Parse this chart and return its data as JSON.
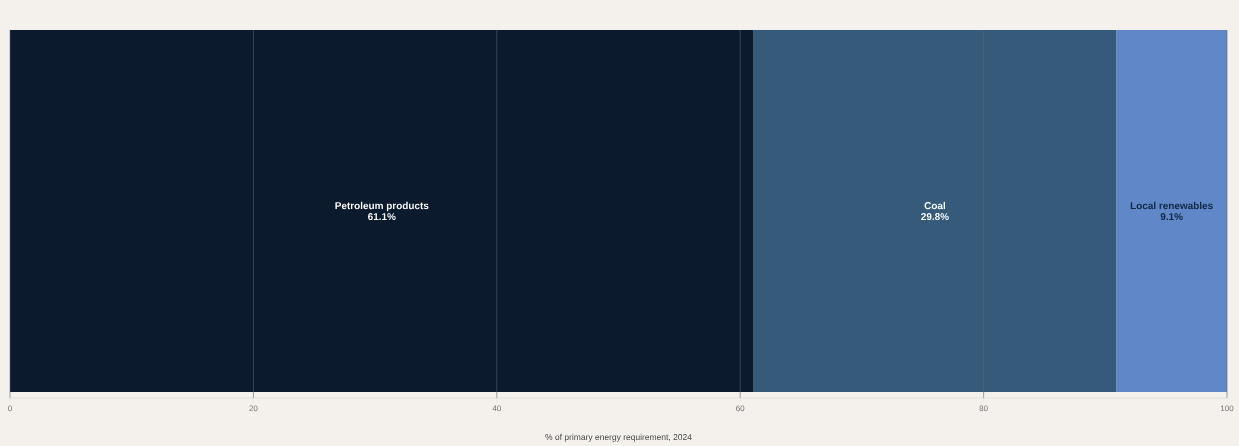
{
  "chart_data": {
    "type": "bar",
    "orientation": "horizontal",
    "stacked": true,
    "categories": [
      null
    ],
    "series": [
      {
        "name": "Petroleum products",
        "color": "#0b1a2c",
        "values": [
          61.1
        ],
        "value_labels": [
          "61.1%"
        ]
      },
      {
        "name": "Coal",
        "color": "#355a7a",
        "values": [
          29.8
        ],
        "value_labels": [
          "29.8%"
        ]
      },
      {
        "name": "Local renewables",
        "color": "#6088c8",
        "values": [
          9.1
        ],
        "value_labels": [
          "9.1%"
        ]
      }
    ],
    "xlabel": "% of primary energy requirement, 2024",
    "xlim": [
      0,
      100
    ],
    "xticks": [
      0,
      20,
      40,
      60,
      80,
      100
    ],
    "grid": "x"
  }
}
